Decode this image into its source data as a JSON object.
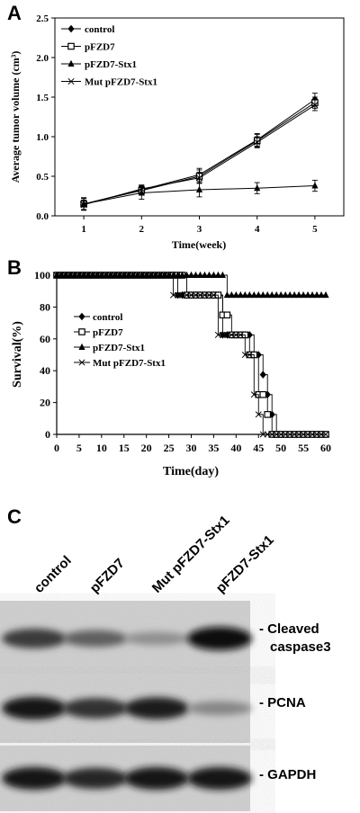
{
  "panels": {
    "a": "A",
    "b": "B",
    "c": "C"
  },
  "chart_data": [
    {
      "type": "line",
      "panel": "A",
      "xlabel": "Time(week)",
      "ylabel": "Average tumor volume (cm³)",
      "x": [
        1,
        2,
        3,
        4,
        5
      ],
      "xlim": [
        0.5,
        5.5
      ],
      "ylim": [
        0,
        2.5
      ],
      "xticks": [
        "1",
        "2",
        "3",
        "4",
        "5"
      ],
      "yticks": [
        "0.0",
        "0.5",
        "1.0",
        "1.5",
        "2.0",
        "2.5"
      ],
      "legend_position": "top-left",
      "series": [
        {
          "name": "control",
          "marker": "diamond",
          "values": [
            0.15,
            0.33,
            0.52,
            0.96,
            1.47
          ],
          "errors": [
            0.07,
            0.05,
            0.08,
            0.08,
            0.08
          ]
        },
        {
          "name": "pFZD7",
          "marker": "square-open",
          "values": [
            0.15,
            0.32,
            0.5,
            0.95,
            1.43
          ],
          "errors": [
            0.07,
            0.05,
            0.08,
            0.08,
            0.07
          ]
        },
        {
          "name": "pFZD7-Stx1",
          "marker": "triangle",
          "values": [
            0.15,
            0.29,
            0.33,
            0.35,
            0.38
          ],
          "errors": [
            0.08,
            0.08,
            0.09,
            0.07,
            0.07
          ]
        },
        {
          "name": "Mut pFZD7-Stx1",
          "marker": "x",
          "values": [
            0.14,
            0.34,
            0.48,
            0.93,
            1.4
          ],
          "errors": [
            0.06,
            0.05,
            0.07,
            0.07,
            0.07
          ]
        }
      ]
    },
    {
      "type": "line",
      "panel": "B",
      "step": true,
      "xlabel": "Time(day)",
      "ylabel": "Survival(%)",
      "xlim": [
        0,
        60
      ],
      "ylim": [
        0,
        100
      ],
      "xticks": [
        "0",
        "5",
        "10",
        "15",
        "20",
        "25",
        "30",
        "35",
        "40",
        "45",
        "50",
        "55",
        "60"
      ],
      "yticks": [
        "0",
        "20",
        "40",
        "60",
        "80",
        "100"
      ],
      "legend_position": "center-left",
      "series": [
        {
          "name": "control",
          "marker": "diamond",
          "points": [
            [
              0,
              100
            ],
            [
              27,
              100
            ],
            [
              27,
              87.5
            ],
            [
              37,
              87.5
            ],
            [
              37,
              62.5
            ],
            [
              44,
              62.5
            ],
            [
              44,
              50
            ],
            [
              46,
              50
            ],
            [
              46,
              37.5
            ],
            [
              47,
              37.5
            ],
            [
              47,
              25
            ],
            [
              48,
              25
            ],
            [
              48,
              12.5
            ],
            [
              49,
              12.5
            ],
            [
              49,
              0
            ],
            [
              60,
              0
            ]
          ]
        },
        {
          "name": "pFZD7",
          "marker": "square-open",
          "points": [
            [
              0,
              100
            ],
            [
              29,
              100
            ],
            [
              29,
              87.5
            ],
            [
              37,
              87.5
            ],
            [
              37,
              75
            ],
            [
              39,
              75
            ],
            [
              39,
              62.5
            ],
            [
              43,
              62.5
            ],
            [
              43,
              50
            ],
            [
              45,
              50
            ],
            [
              45,
              25
            ],
            [
              47,
              25
            ],
            [
              47,
              12.5
            ],
            [
              48,
              12.5
            ],
            [
              48,
              0
            ],
            [
              60,
              0
            ]
          ]
        },
        {
          "name": "pFZD7-Stx1",
          "marker": "triangle",
          "points": [
            [
              0,
              100
            ],
            [
              38,
              100
            ],
            [
              38,
              87.5
            ],
            [
              60,
              87.5
            ]
          ]
        },
        {
          "name": "Mut pFZD7-Stx1",
          "marker": "x",
          "points": [
            [
              0,
              100
            ],
            [
              26,
              100
            ],
            [
              26,
              87.5
            ],
            [
              36,
              87.5
            ],
            [
              36,
              62.5
            ],
            [
              42,
              62.5
            ],
            [
              42,
              50
            ],
            [
              44,
              50
            ],
            [
              44,
              25
            ],
            [
              45,
              25
            ],
            [
              45,
              12.5
            ],
            [
              46,
              12.5
            ],
            [
              46,
              0
            ],
            [
              60,
              0
            ]
          ]
        }
      ]
    }
  ],
  "western_blot": {
    "lanes": [
      "control",
      "pFZD7",
      "Mut pFZD7-Stx1",
      "pFZD7-Stx1"
    ],
    "rows": [
      {
        "label_line1": "- Cleaved",
        "label_line2": "caspase3",
        "intensity": [
          0.75,
          0.55,
          0.3,
          1.0
        ]
      },
      {
        "label_line1": "- PCNA",
        "label_line2": "",
        "intensity": [
          0.95,
          0.8,
          0.9,
          0.35
        ]
      },
      {
        "label_line1": "- GAPDH",
        "label_line2": "",
        "intensity": [
          0.95,
          0.85,
          0.95,
          0.95
        ]
      }
    ]
  }
}
